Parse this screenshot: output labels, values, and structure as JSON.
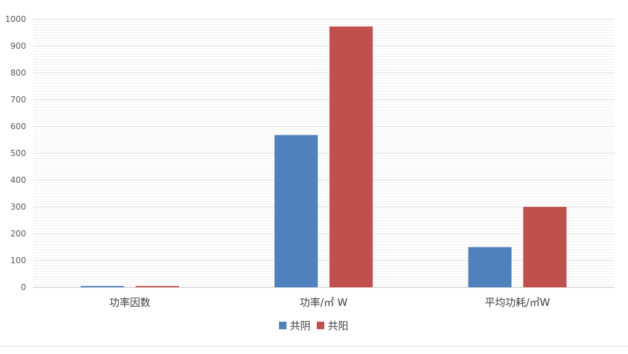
{
  "chart_data": {
    "type": "bar",
    "title": "",
    "xlabel": "",
    "ylabel": "",
    "categories": [
      "功率因数",
      "功率/㎡ W",
      "平均功耗/㎡W"
    ],
    "series": [
      {
        "name": "共阴",
        "color": "#4F81BD",
        "values": [
          5,
          568,
          150
        ]
      },
      {
        "name": "共阳",
        "color": "#C0504D",
        "values": [
          5,
          973,
          300
        ]
      }
    ],
    "ylim": [
      0,
      1000
    ],
    "yticks": [
      0,
      100,
      200,
      300,
      400,
      500,
      600,
      700,
      800,
      900,
      1000
    ],
    "grid": "horizontal",
    "legend": "bottom-center"
  }
}
